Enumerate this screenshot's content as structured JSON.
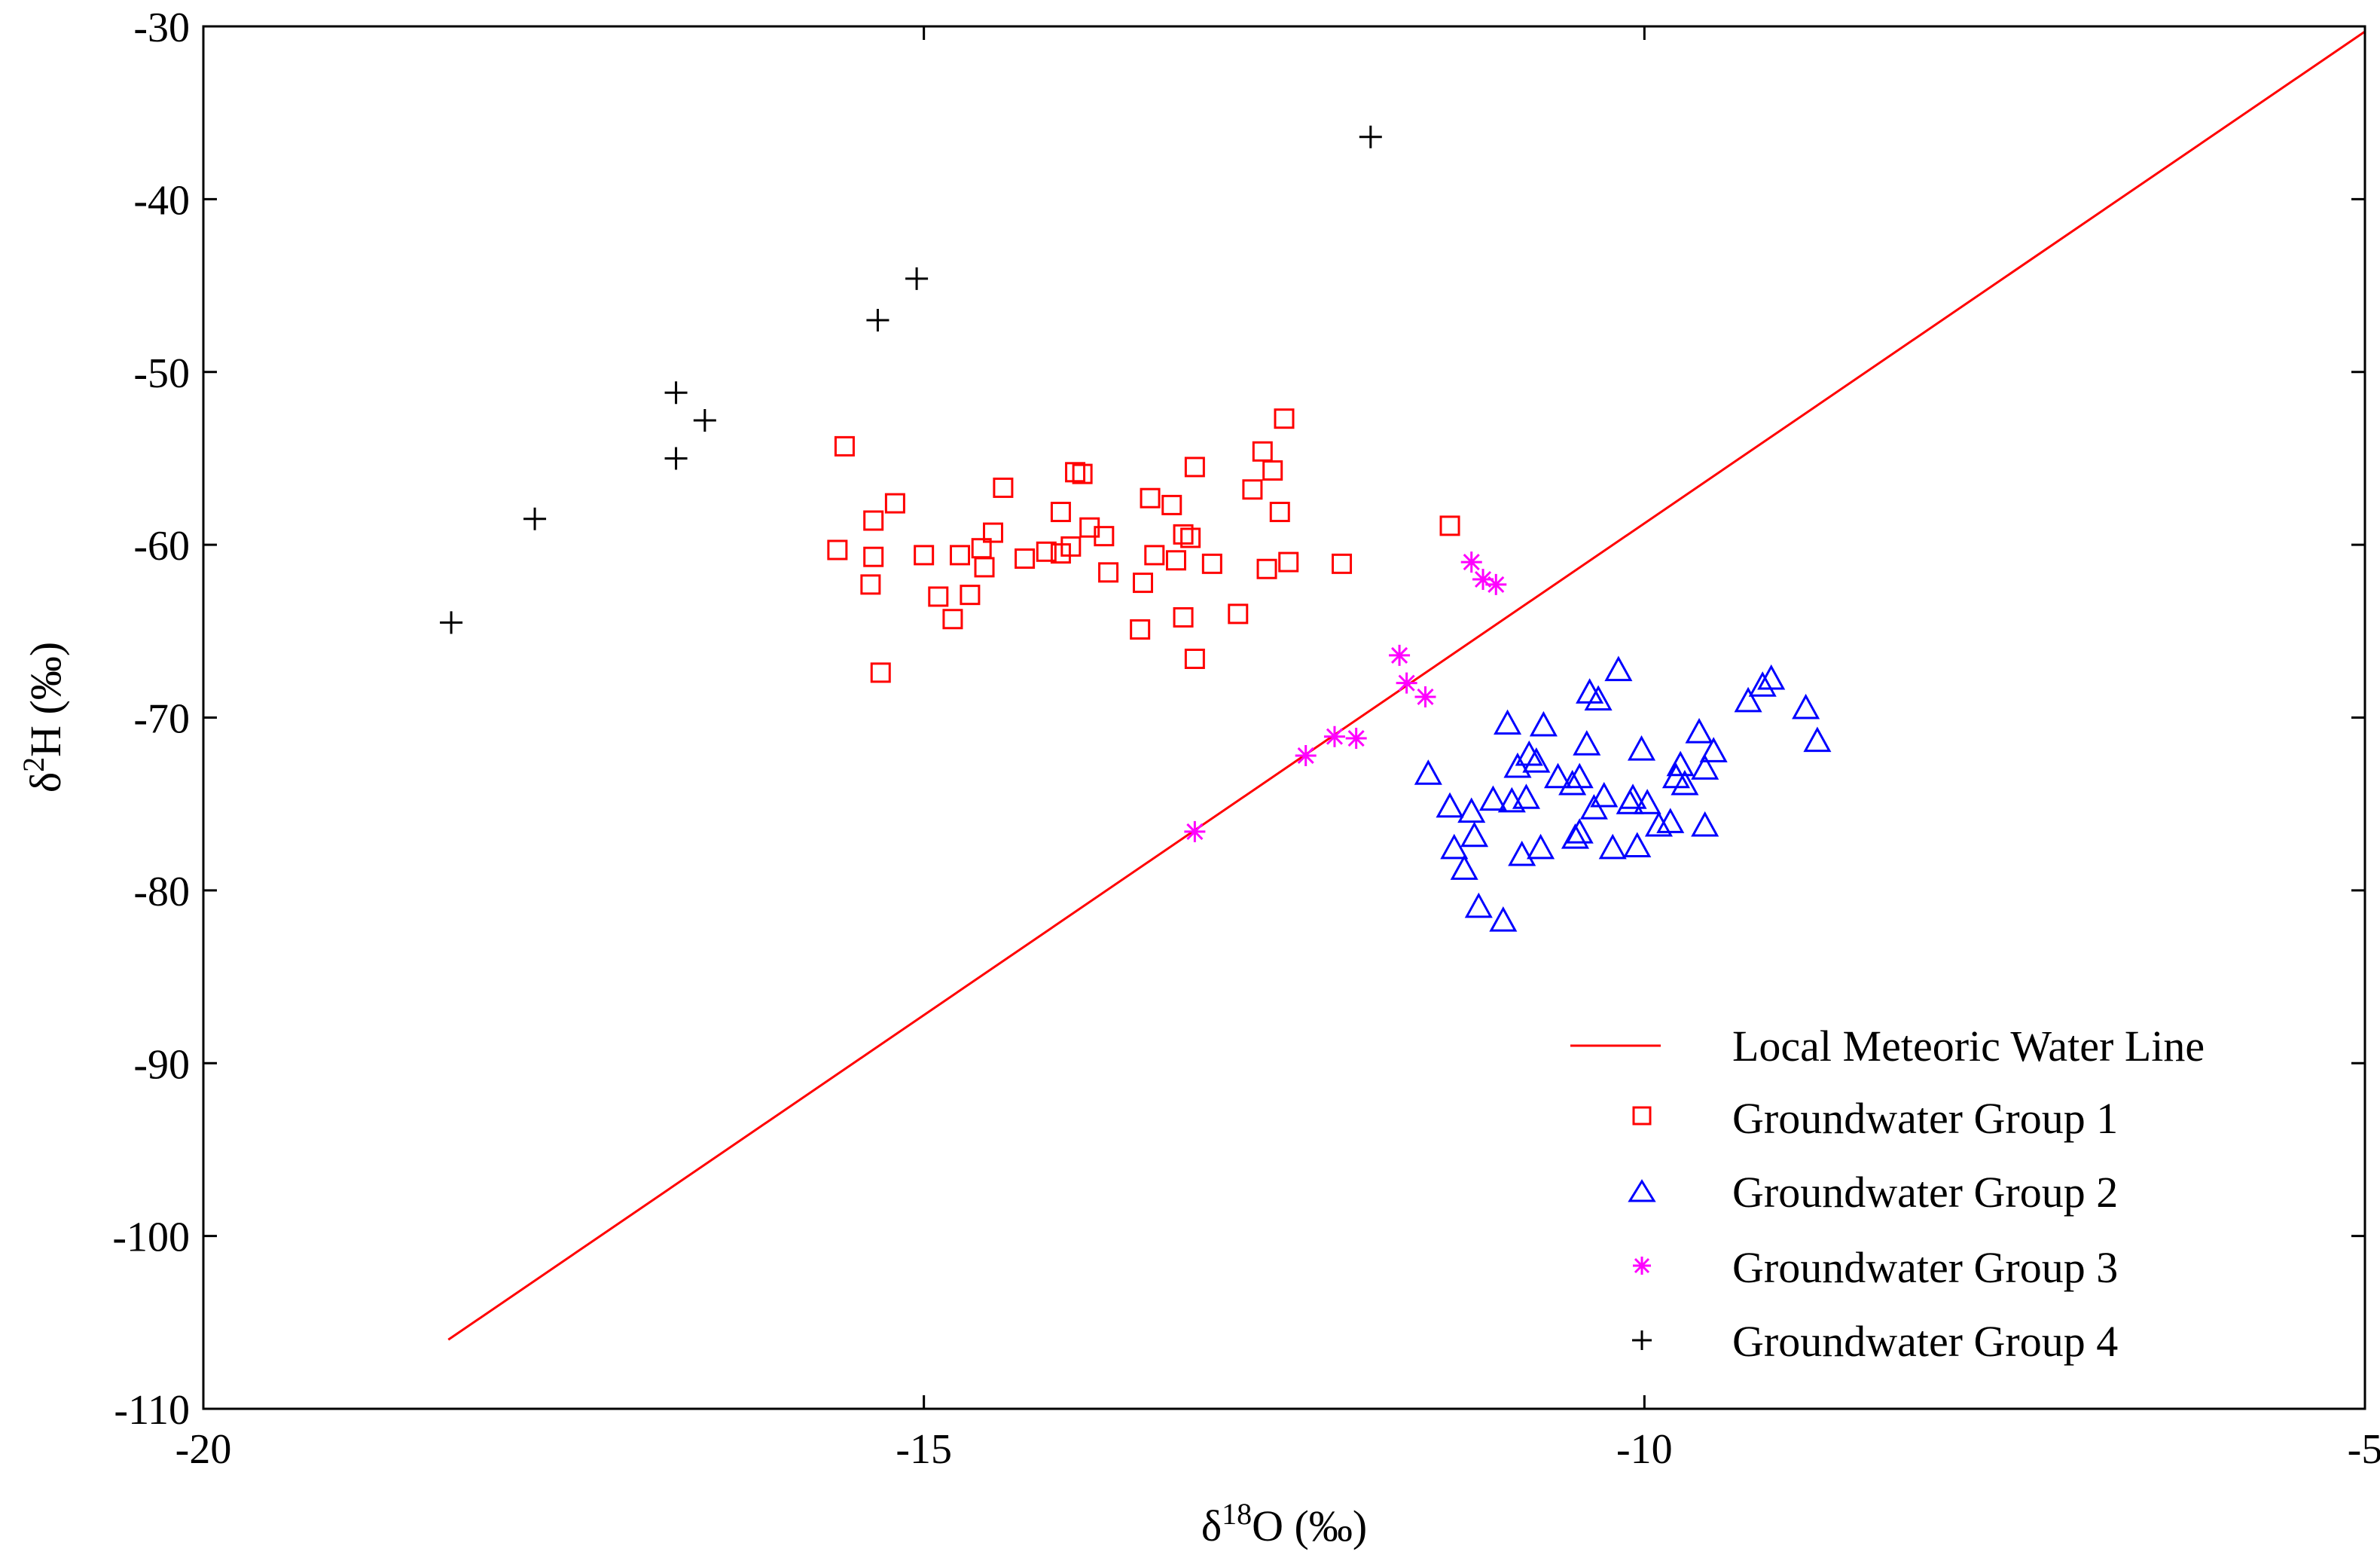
{
  "chart_data": {
    "type": "scatter",
    "title": "",
    "xlabel": {
      "prefix": "δ",
      "sup": "18",
      "suffix": "O (‰)"
    },
    "ylabel": {
      "prefix": "δ",
      "sup": "2",
      "suffix": "H (‰)"
    },
    "xlim": [
      -20,
      -5
    ],
    "ylim": [
      -110,
      -30
    ],
    "xticks": [
      -20,
      -15,
      -10,
      -5
    ],
    "yticks": [
      -30,
      -40,
      -50,
      -60,
      -70,
      -80,
      -90,
      -100,
      -110
    ],
    "grid": false,
    "legend_position": "bottom-right",
    "line": {
      "name": "Local Meteoric Water Line",
      "color": "#ff0000",
      "x": [
        -18.3,
        -5
      ],
      "y": [
        -106,
        -30.3
      ]
    },
    "series": [
      {
        "name": "Groundwater Group 1",
        "marker": "square",
        "color": "#ff0000",
        "points": [
          [
            -15.55,
            -54.3
          ],
          [
            -15.6,
            -60.3
          ],
          [
            -15.35,
            -58.6
          ],
          [
            -15.35,
            -60.7
          ],
          [
            -15.37,
            -62.3
          ],
          [
            -15.3,
            -67.4
          ],
          [
            -15.2,
            -57.6
          ],
          [
            -15.0,
            -60.6
          ],
          [
            -14.9,
            -63.0
          ],
          [
            -14.8,
            -64.3
          ],
          [
            -14.75,
            -60.6
          ],
          [
            -14.68,
            -62.9
          ],
          [
            -14.6,
            -60.2
          ],
          [
            -14.58,
            -61.3
          ],
          [
            -14.52,
            -59.3
          ],
          [
            -14.45,
            -56.7
          ],
          [
            -14.3,
            -60.8
          ],
          [
            -14.15,
            -60.4
          ],
          [
            -14.05,
            -60.5
          ],
          [
            -14.05,
            -58.1
          ],
          [
            -13.98,
            -60.1
          ],
          [
            -13.95,
            -55.8
          ],
          [
            -13.9,
            -55.9
          ],
          [
            -13.85,
            -59.0
          ],
          [
            -13.75,
            -59.5
          ],
          [
            -13.72,
            -61.6
          ],
          [
            -13.5,
            -64.9
          ],
          [
            -13.48,
            -62.2
          ],
          [
            -13.43,
            -57.3
          ],
          [
            -13.4,
            -60.6
          ],
          [
            -13.28,
            -57.7
          ],
          [
            -13.25,
            -60.9
          ],
          [
            -13.2,
            -59.4
          ],
          [
            -13.2,
            -64.2
          ],
          [
            -13.15,
            -59.6
          ],
          [
            -13.12,
            -66.6
          ],
          [
            -13.12,
            -55.5
          ],
          [
            -13.0,
            -61.1
          ],
          [
            -12.82,
            -64.0
          ],
          [
            -12.72,
            -56.8
          ],
          [
            -12.65,
            -54.6
          ],
          [
            -12.62,
            -61.4
          ],
          [
            -12.58,
            -55.7
          ],
          [
            -12.53,
            -58.1
          ],
          [
            -12.5,
            -52.7
          ],
          [
            -12.47,
            -61.0
          ],
          [
            -12.1,
            -61.1
          ],
          [
            -11.35,
            -58.9
          ]
        ]
      },
      {
        "name": "Groundwater Group 2",
        "marker": "triangle",
        "color": "#0000ff",
        "points": [
          [
            -11.5,
            -73.3
          ],
          [
            -11.35,
            -75.2
          ],
          [
            -11.32,
            -77.6
          ],
          [
            -11.25,
            -78.8
          ],
          [
            -11.2,
            -75.5
          ],
          [
            -11.18,
            -76.9
          ],
          [
            -11.15,
            -81.0
          ],
          [
            -11.05,
            -74.8
          ],
          [
            -10.98,
            -81.8
          ],
          [
            -10.95,
            -70.4
          ],
          [
            -10.92,
            -74.9
          ],
          [
            -10.88,
            -72.9
          ],
          [
            -10.85,
            -78.0
          ],
          [
            -10.82,
            -74.7
          ],
          [
            -10.8,
            -72.2
          ],
          [
            -10.75,
            -72.6
          ],
          [
            -10.72,
            -77.6
          ],
          [
            -10.7,
            -70.5
          ],
          [
            -10.6,
            -73.5
          ],
          [
            -10.5,
            -73.9
          ],
          [
            -10.48,
            -77.0
          ],
          [
            -10.45,
            -76.7
          ],
          [
            -10.45,
            -73.5
          ],
          [
            -10.4,
            -71.6
          ],
          [
            -10.38,
            -68.6
          ],
          [
            -10.35,
            -75.3
          ],
          [
            -10.32,
            -69.0
          ],
          [
            -10.28,
            -74.6
          ],
          [
            -10.22,
            -77.6
          ],
          [
            -10.18,
            -67.3
          ],
          [
            -10.1,
            -75.0
          ],
          [
            -10.08,
            -74.7
          ],
          [
            -10.05,
            -77.5
          ],
          [
            -10.02,
            -71.9
          ],
          [
            -9.98,
            -75.0
          ],
          [
            -9.9,
            -76.3
          ],
          [
            -9.82,
            -76.1
          ],
          [
            -9.78,
            -73.5
          ],
          [
            -9.75,
            -72.8
          ],
          [
            -9.72,
            -73.9
          ],
          [
            -9.62,
            -70.9
          ],
          [
            -9.58,
            -73.0
          ],
          [
            -9.58,
            -76.3
          ],
          [
            -9.52,
            -72.0
          ],
          [
            -9.28,
            -69.1
          ],
          [
            -9.18,
            -68.2
          ],
          [
            -9.12,
            -67.8
          ],
          [
            -8.88,
            -69.5
          ],
          [
            -8.8,
            -71.4
          ]
        ]
      },
      {
        "name": "Groundwater Group 3",
        "marker": "asterisk",
        "color": "#ff00ff",
        "points": [
          [
            -11.2,
            -61.0
          ],
          [
            -11.12,
            -62.0
          ],
          [
            -11.03,
            -62.3
          ],
          [
            -11.7,
            -66.4
          ],
          [
            -11.65,
            -68.0
          ],
          [
            -11.52,
            -68.8
          ],
          [
            -12.0,
            -71.2
          ],
          [
            -12.15,
            -71.1
          ],
          [
            -12.35,
            -72.2
          ],
          [
            -13.12,
            -76.6
          ]
        ]
      },
      {
        "name": "Groundwater Group 4",
        "marker": "plus",
        "color": "#000000",
        "points": [
          [
            -11.9,
            -36.4
          ],
          [
            -15.05,
            -44.6
          ],
          [
            -15.32,
            -47.0
          ],
          [
            -16.72,
            -51.2
          ],
          [
            -16.52,
            -52.8
          ],
          [
            -16.72,
            -55.0
          ],
          [
            -17.7,
            -58.5
          ],
          [
            -18.28,
            -64.5
          ]
        ]
      }
    ]
  }
}
